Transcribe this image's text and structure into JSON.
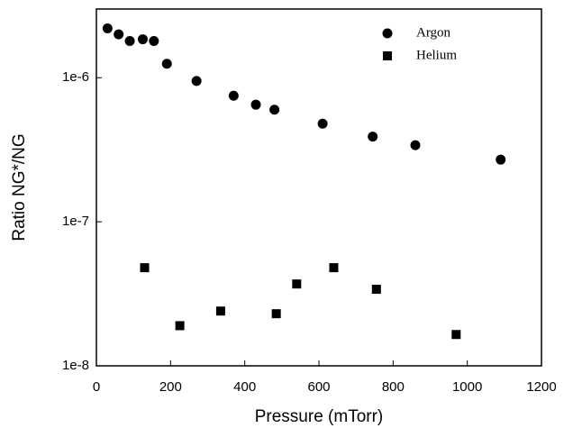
{
  "chart_data": {
    "type": "scatter",
    "x_label": "Pressure (mTorr)",
    "y_label": "Ratio NG*/NG",
    "log_y": true,
    "legend": "upper right",
    "xlim": [
      0,
      1200
    ],
    "xticks": [
      0,
      200,
      400,
      600,
      800,
      1000,
      1200
    ],
    "ylim": [
      1e-08,
      3e-06
    ],
    "yticks": [
      {
        "value": 1e-08,
        "label": "1e-8"
      },
      {
        "value": 1e-07,
        "label": "1e-7"
      },
      {
        "value": 1e-06,
        "label": "1e-6"
      }
    ],
    "series": [
      {
        "name": "Argon",
        "color": "#000000",
        "marker": "circle",
        "x": [
          30,
          60,
          90,
          125,
          155,
          190,
          270,
          370,
          430,
          480,
          610,
          745,
          860,
          1090
        ],
        "values": [
          2.2e-06,
          2e-06,
          1.8e-06,
          1.85e-06,
          1.8e-06,
          1.25e-06,
          9.5e-07,
          7.5e-07,
          6.5e-07,
          6e-07,
          4.8e-07,
          3.9e-07,
          3.4e-07,
          2.7e-07
        ]
      },
      {
        "name": "Helium",
        "color": "#000000",
        "marker": "square",
        "x": [
          130,
          225,
          335,
          485,
          540,
          640,
          755,
          970
        ],
        "values": [
          4.8e-08,
          1.9e-08,
          2.4e-08,
          2.3e-08,
          3.7e-08,
          4.8e-08,
          3.4e-08,
          1.65e-08
        ]
      }
    ]
  }
}
